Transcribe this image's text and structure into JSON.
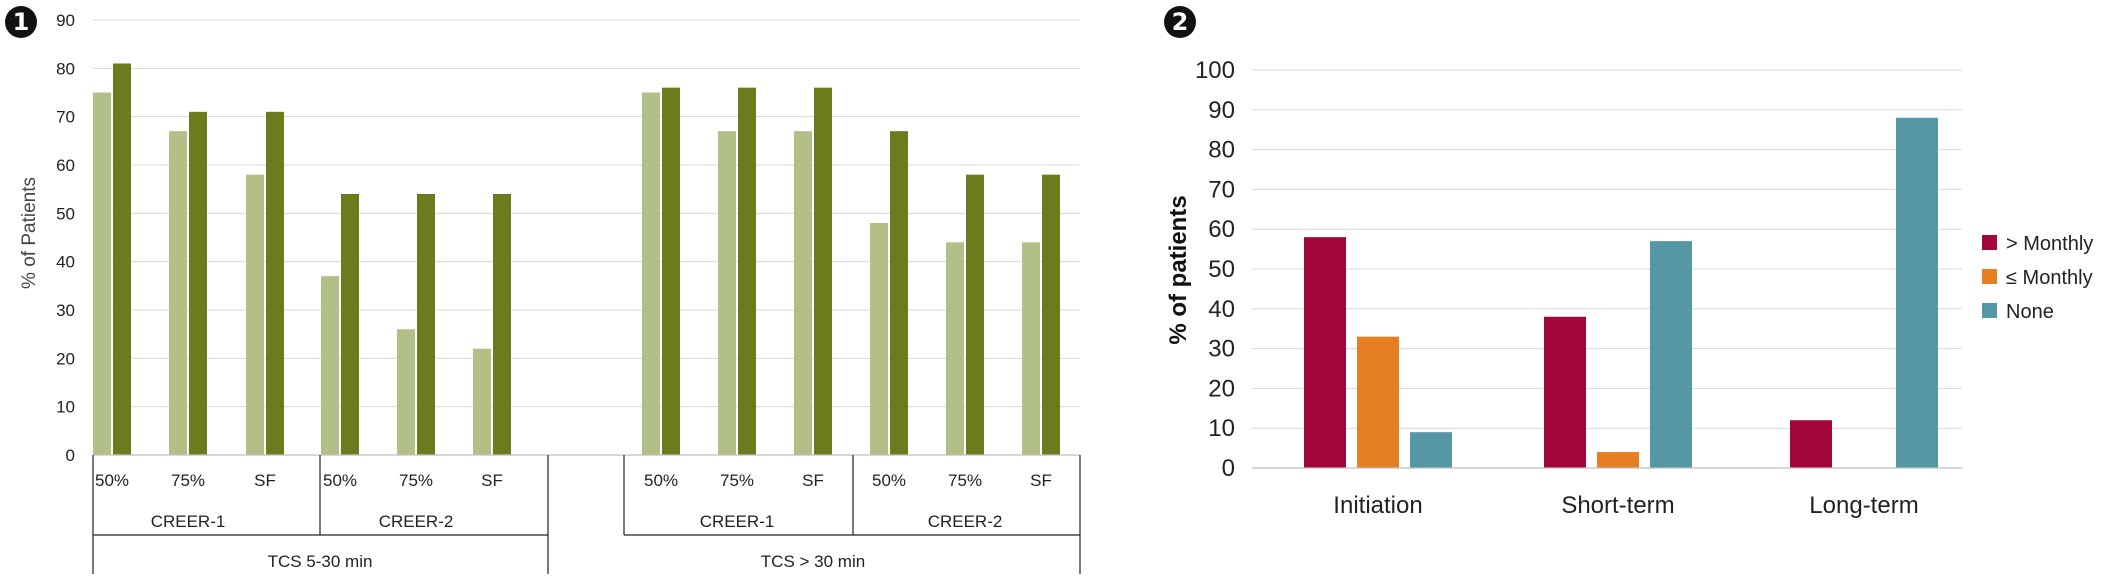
{
  "chart_data": [
    {
      "type": "bar",
      "panel_label": "1",
      "ylabel": "% of Patients",
      "ylim": [
        0,
        90
      ],
      "yticks": [
        0,
        10,
        20,
        30,
        40,
        50,
        60,
        70,
        80,
        90
      ],
      "grid": true,
      "categories": [
        "50%",
        "75%",
        "SF",
        "50%",
        "75%",
        "SF",
        "50%",
        "75%",
        "SF",
        "50%",
        "75%",
        "SF"
      ],
      "group_level_2": [
        {
          "label": "CREER-1",
          "span": 3
        },
        {
          "label": "CREER-2",
          "span": 3
        },
        {
          "label": "CREER-1",
          "span": 3
        },
        {
          "label": "CREER-2",
          "span": 3
        }
      ],
      "group_level_3": [
        {
          "label": "TCS 5-30 min",
          "span": 6
        },
        {
          "label": "TCS > 30 min",
          "span": 6
        }
      ],
      "series": [
        {
          "color": "#b2bf86",
          "values": [
            75,
            67,
            58,
            37,
            26,
            22,
            75,
            67,
            67,
            48,
            44,
            44
          ]
        },
        {
          "color": "#6b7b1e",
          "values": [
            81,
            71,
            71,
            54,
            54,
            54,
            76,
            76,
            76,
            67,
            58,
            58
          ]
        }
      ]
    },
    {
      "type": "bar",
      "panel_label": "2",
      "ylabel": "% of patients",
      "ylim": [
        0,
        100
      ],
      "yticks": [
        0,
        10,
        20,
        30,
        40,
        50,
        60,
        70,
        80,
        90,
        100
      ],
      "grid": true,
      "legend_position": "right",
      "categories": [
        "Initiation",
        "Short-term",
        "Long-term"
      ],
      "series": [
        {
          "name": "> Monthly",
          "color": "#a3063b",
          "values": [
            58,
            38,
            12
          ]
        },
        {
          "name": "≤ Monthly",
          "color": "#e67e22",
          "values": [
            33,
            4,
            0
          ]
        },
        {
          "name": "None",
          "color": "#5697a5",
          "values": [
            9,
            57,
            88
          ]
        }
      ]
    }
  ]
}
